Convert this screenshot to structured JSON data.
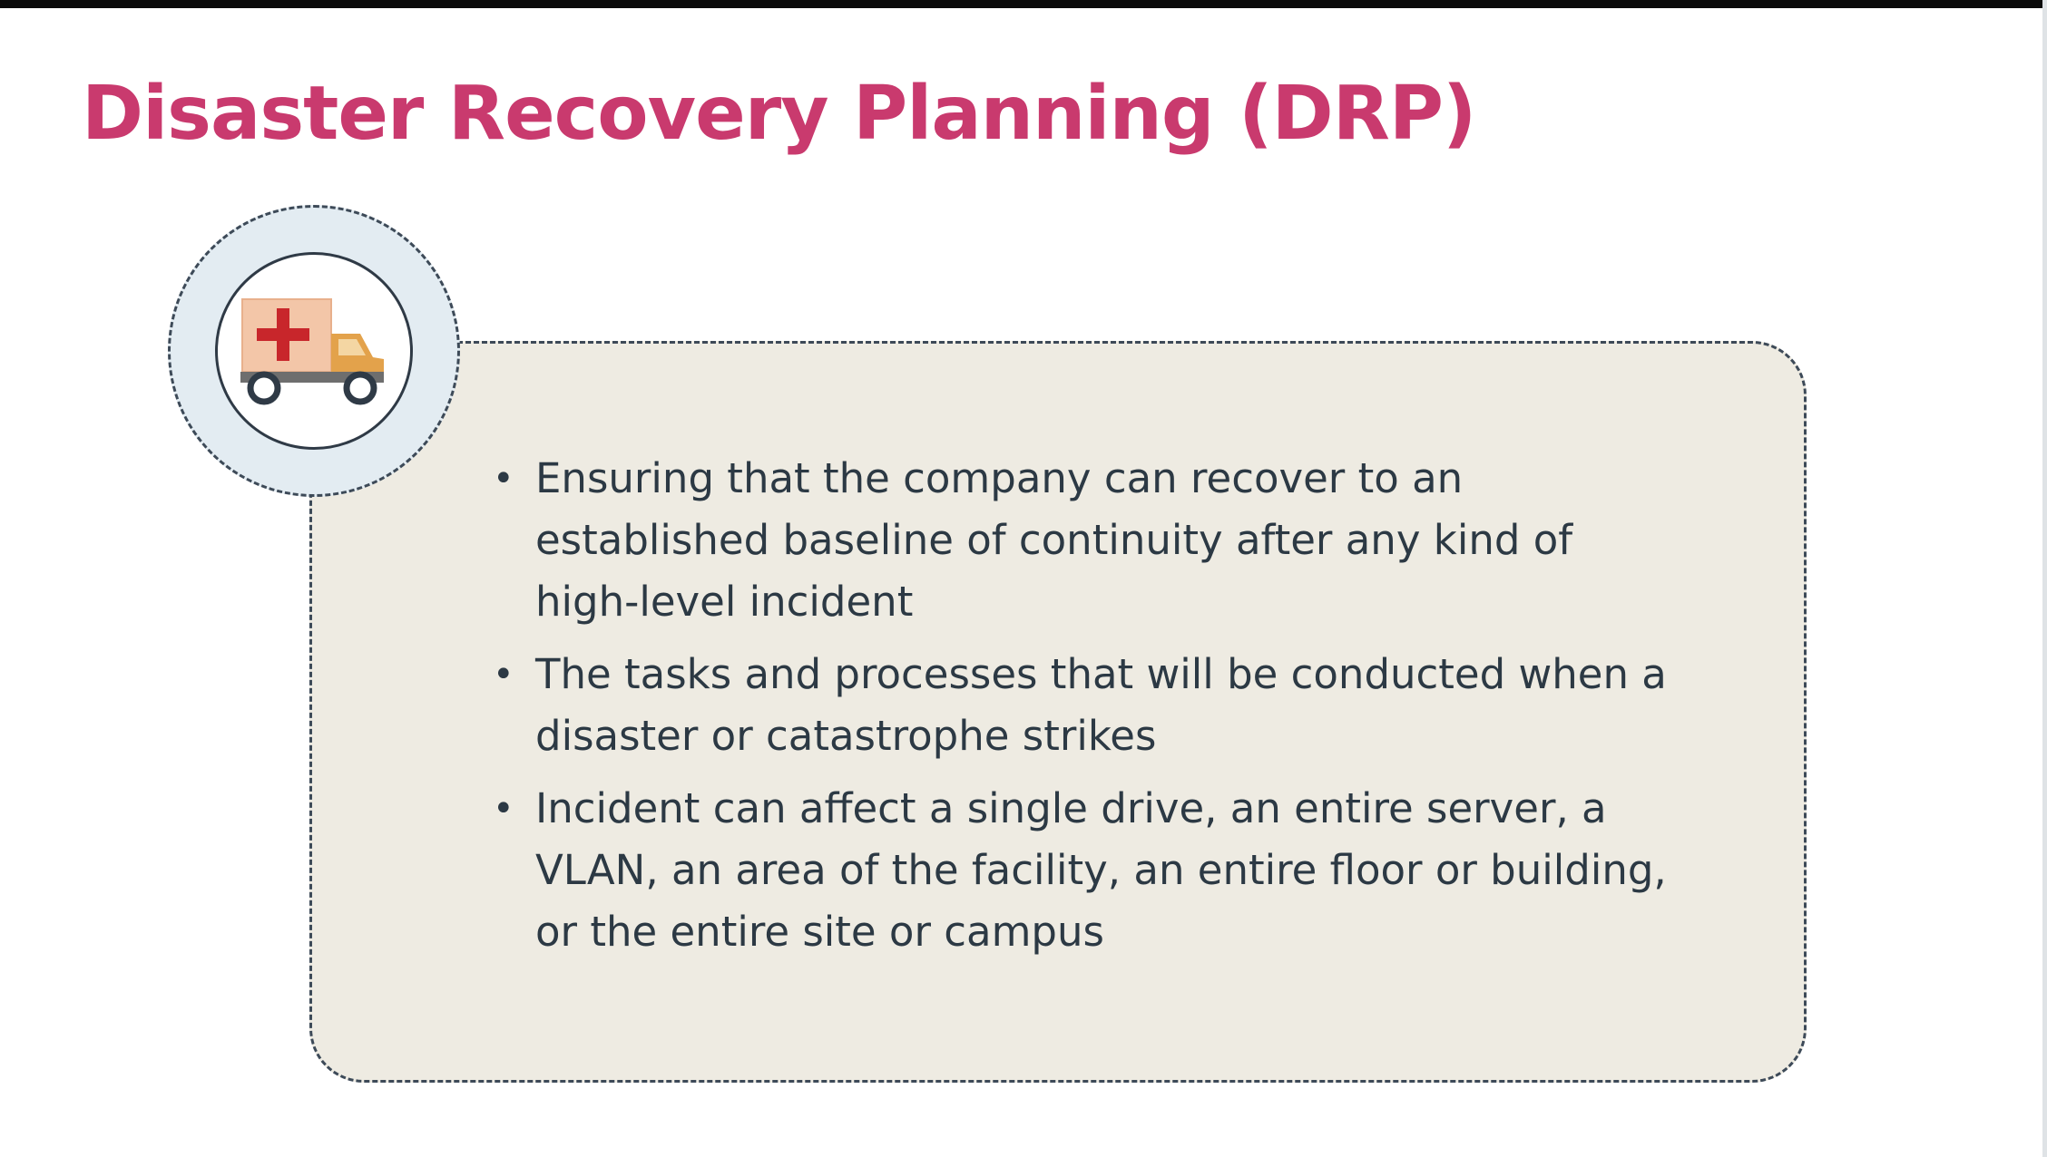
{
  "slide": {
    "title": "Disaster Recovery Planning (DRP)",
    "icon": "ambulance-icon",
    "colors": {
      "title": "#c93a6e",
      "box_fill": "#eeebe2",
      "badge_fill": "#e3ecf2",
      "text": "#2c3944"
    },
    "bullet_symbol": "•",
    "bullets": [
      {
        "text": "Ensuring that the company can recover to an established baseline of continuity after any kind of high-level incident"
      },
      {
        "text": "The tasks and processes that will be conducted when a disaster or catastrophe strikes"
      },
      {
        "text": "Incident can affect a single drive, an entire server, a VLAN, an area of the facility, an entire floor or building, or the entire site or campus"
      }
    ]
  }
}
